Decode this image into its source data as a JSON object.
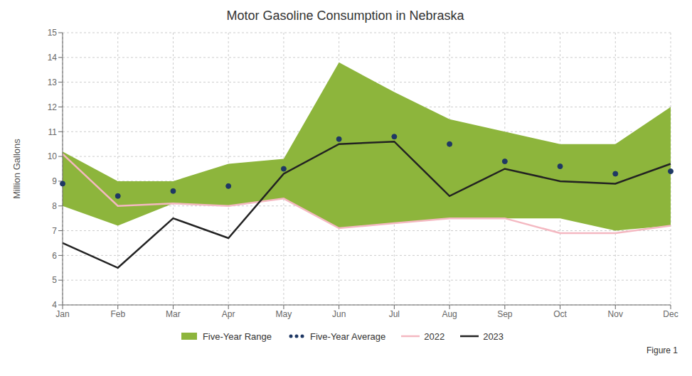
{
  "chart_data": {
    "type": "line",
    "title": "Motor Gasoline Consumption in Nebraska",
    "y_label": "Million Gallons",
    "annotation": "Figure 1",
    "categories": [
      "Jan",
      "Feb",
      "Mar",
      "Apr",
      "May",
      "Jun",
      "Jul",
      "Aug",
      "Sep",
      "Oct",
      "Nov",
      "Dec"
    ],
    "series": [
      {
        "name": "Five-Year Range",
        "type": "area",
        "color": "#8db53c",
        "lower": [
          8.0,
          7.2,
          8.1,
          8.0,
          8.3,
          7.1,
          7.3,
          7.5,
          7.5,
          7.5,
          7.0,
          7.2
        ],
        "upper": [
          10.2,
          9.0,
          9.0,
          9.7,
          9.9,
          13.8,
          12.6,
          11.5,
          11.0,
          10.5,
          10.5,
          12.0
        ]
      },
      {
        "name": "Five-Year Average",
        "type": "line",
        "line_style": "none",
        "marker": "circle",
        "color": "#1f3864",
        "values": [
          8.9,
          8.4,
          8.6,
          8.8,
          9.5,
          10.7,
          10.8,
          10.5,
          9.8,
          9.6,
          9.3,
          9.4
        ]
      },
      {
        "name": "2022",
        "type": "line",
        "line_style": "solid",
        "color": "#f4b8c1",
        "values": [
          10.1,
          8.0,
          8.1,
          8.0,
          8.3,
          7.1,
          7.3,
          7.5,
          7.5,
          6.9,
          6.9,
          7.2
        ]
      },
      {
        "name": "2023",
        "type": "line",
        "line_style": "solid",
        "color": "#222222",
        "values": [
          6.5,
          5.5,
          7.5,
          6.7,
          9.3,
          10.5,
          10.6,
          8.4,
          9.5,
          9.0,
          8.9,
          9.7
        ]
      }
    ],
    "ylim": [
      4,
      15
    ],
    "yticks": [
      4,
      5,
      6,
      7,
      8,
      9,
      10,
      11,
      12,
      13,
      14,
      15
    ],
    "grid": true,
    "legend": "bottom"
  }
}
